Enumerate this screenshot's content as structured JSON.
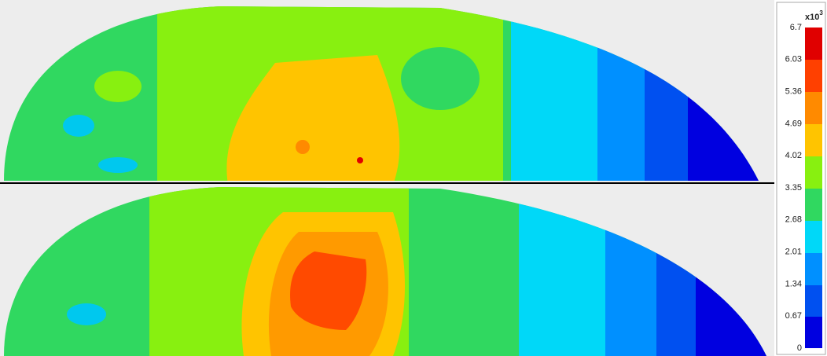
{
  "colorbar": {
    "unit": {
      "base": "x10",
      "exponent": "3"
    },
    "ticks": [
      6.7,
      6.03,
      5.36,
      4.69,
      4.02,
      3.35,
      2.68,
      2.01,
      1.34,
      0.67,
      0
    ]
  }
}
